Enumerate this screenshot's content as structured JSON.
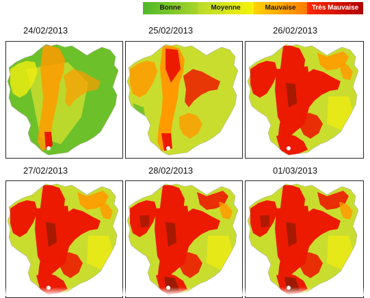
{
  "legend": {
    "items": [
      {
        "label": "Bonne",
        "color": "#6cc12a"
      },
      {
        "label": "Moyenne",
        "color": "#dfe62a"
      },
      {
        "label": "Mauvaise",
        "color": "#ff9a00"
      },
      {
        "label": "Très Mauvaise",
        "color": "#e80000"
      }
    ]
  },
  "panels": [
    {
      "date": "24/02/2013",
      "quality": "bonne-moyenne"
    },
    {
      "date": "25/02/2013",
      "quality": "moyenne-mauvaise"
    },
    {
      "date": "26/02/2013",
      "quality": "tres-mauvaise"
    },
    {
      "date": "27/02/2013",
      "quality": "tres-mauvaise"
    },
    {
      "date": "28/02/2013",
      "quality": "tres-mauvaise"
    },
    {
      "date": "01/03/2013",
      "quality": "tres-mauvaise"
    }
  ],
  "palette": {
    "green": "#6cc12a",
    "yellow_green": "#c9dd2e",
    "yellow": "#f3ec10",
    "orange": "#ff9a00",
    "red": "#ec1a00",
    "dark_red": "#8a1a00",
    "white": "#ffffff"
  }
}
